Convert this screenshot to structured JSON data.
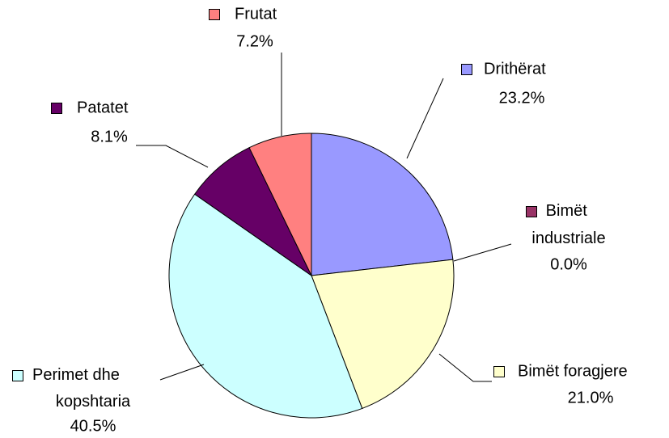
{
  "chart_data": {
    "type": "pie",
    "categories": [
      "Drithërat",
      "Bimët industriale",
      "Bimët foragjere",
      "Perimet dhe kopshtaria",
      "Patatet",
      "Frutat"
    ],
    "values": [
      23.2,
      0.0,
      21.0,
      40.5,
      8.1,
      7.2
    ],
    "value_labels": [
      "23.2%",
      "0.0%",
      "21.0%",
      "40.5%",
      "8.1%",
      "7.2%"
    ],
    "colors": [
      "#9999ff",
      "#993366",
      "#ffffcc",
      "#ccffff",
      "#660066",
      "#ff8080"
    ]
  }
}
